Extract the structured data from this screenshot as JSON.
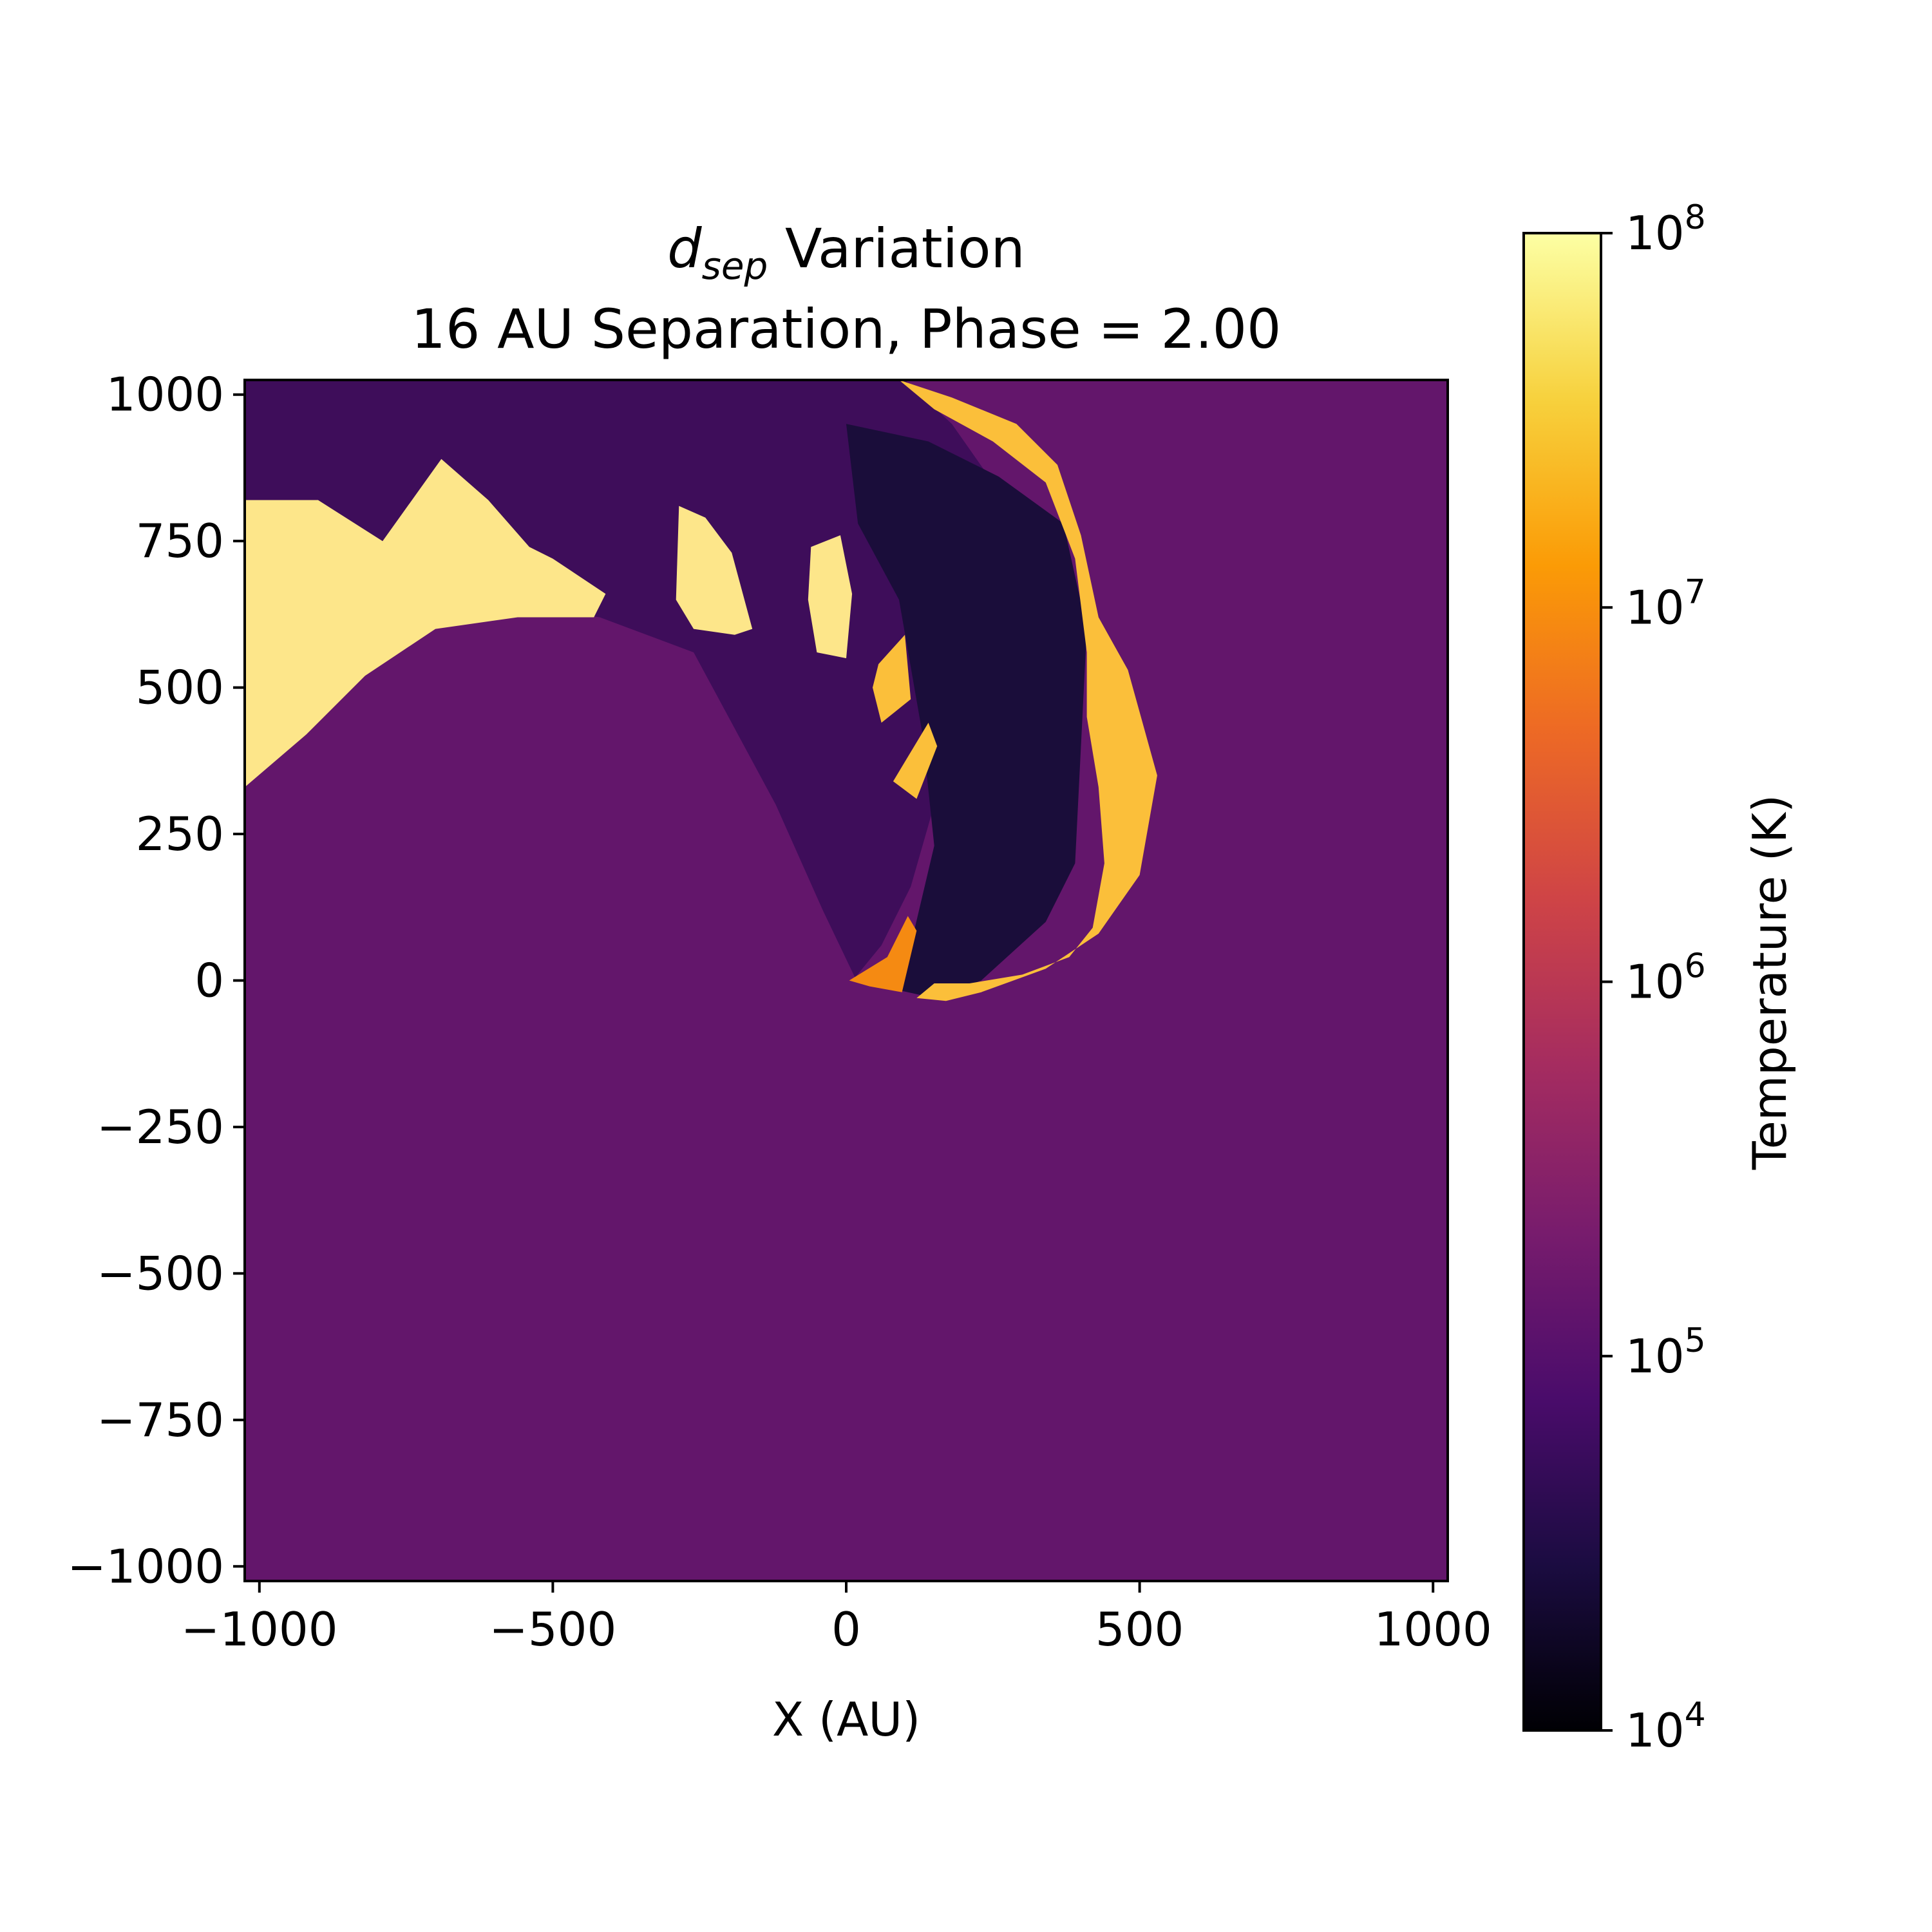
{
  "chart_data": {
    "type": "heatmap",
    "title": {
      "italic_symbol": "d",
      "italic_subscript": "sep",
      "line1_rest": " Variation",
      "line2": "16 AU Separation, Phase = 2.00"
    },
    "xlabel": "X (AU)",
    "ylabel": "",
    "xlim": [
      -1025,
      1025
    ],
    "ylim": [
      -1025,
      1025
    ],
    "xticks": [
      {
        "value": -1000,
        "label": "−1000"
      },
      {
        "value": -500,
        "label": "−500"
      },
      {
        "value": 0,
        "label": "0"
      },
      {
        "value": 500,
        "label": "500"
      },
      {
        "value": 1000,
        "label": "1000"
      }
    ],
    "yticks": [
      {
        "value": 1000,
        "label": "1000"
      },
      {
        "value": 750,
        "label": "750"
      },
      {
        "value": 500,
        "label": "500"
      },
      {
        "value": 250,
        "label": "250"
      },
      {
        "value": 0,
        "label": "0"
      },
      {
        "value": -250,
        "label": "−250"
      },
      {
        "value": -500,
        "label": "−500"
      },
      {
        "value": -750,
        "label": "−750"
      },
      {
        "value": -1000,
        "label": "−1000"
      }
    ],
    "colorbar": {
      "label": "Temperature (K)",
      "scale": "log",
      "colormap": "inferno",
      "range": [
        10000,
        100000000
      ],
      "ticks": [
        {
          "value": 100000000,
          "base": "10",
          "exp": "8"
        },
        {
          "value": 10000000,
          "base": "10",
          "exp": "7"
        },
        {
          "value": 1000000,
          "base": "10",
          "exp": "6"
        },
        {
          "value": 100000,
          "base": "10",
          "exp": "5"
        },
        {
          "value": 10000,
          "base": "10",
          "exp": "4"
        }
      ],
      "stops": [
        "#000004",
        "#1b0c41",
        "#4a0c6b",
        "#781c6d",
        "#a52c60",
        "#cf4446",
        "#ed6925",
        "#fb9b06",
        "#f7d13d",
        "#fcffa4"
      ]
    },
    "background_level": "#63166b",
    "regions": [
      {
        "name": "upper-ambient-wind",
        "temperature_K": 50000,
        "color": "#3e0d5a",
        "polygon": [
          [
            -1025,
            1025
          ],
          [
            100,
            1025
          ],
          [
            180,
            950
          ],
          [
            250,
            850
          ],
          [
            300,
            700
          ],
          [
            260,
            560
          ],
          [
            200,
            420
          ],
          [
            150,
            300
          ],
          [
            110,
            160
          ],
          [
            60,
            60
          ],
          [
            15,
            5
          ],
          [
            -40,
            120
          ],
          [
            -120,
            300
          ],
          [
            -260,
            560
          ],
          [
            -420,
            620
          ],
          [
            -560,
            640
          ],
          [
            -700,
            650
          ],
          [
            -860,
            690
          ],
          [
            -1025,
            720
          ]
        ]
      },
      {
        "name": "cavity-interior",
        "temperature_K": 25000,
        "color": "#1a0d3a",
        "polygon": [
          [
            0,
            950
          ],
          [
            140,
            920
          ],
          [
            260,
            860
          ],
          [
            370,
            780
          ],
          [
            410,
            600
          ],
          [
            400,
            400
          ],
          [
            390,
            200
          ],
          [
            340,
            100
          ],
          [
            230,
            0
          ],
          [
            150,
            -30
          ],
          [
            60,
            -10
          ],
          [
            110,
            60
          ],
          [
            150,
            230
          ],
          [
            130,
            420
          ],
          [
            90,
            650
          ],
          [
            20,
            780
          ]
        ]
      },
      {
        "name": "shock-shell-right",
        "temperature_K": 60000000,
        "color": "#fbbf3a",
        "polygon": [
          [
            90,
            1025
          ],
          [
            180,
            995
          ],
          [
            290,
            950
          ],
          [
            360,
            880
          ],
          [
            400,
            760
          ],
          [
            430,
            620
          ],
          [
            480,
            530
          ],
          [
            530,
            350
          ],
          [
            500,
            180
          ],
          [
            430,
            80
          ],
          [
            340,
            20
          ],
          [
            230,
            -20
          ],
          [
            170,
            -35
          ],
          [
            120,
            -30
          ],
          [
            150,
            -5
          ],
          [
            210,
            -5
          ],
          [
            300,
            10
          ],
          [
            380,
            40
          ],
          [
            420,
            90
          ],
          [
            440,
            200
          ],
          [
            430,
            330
          ],
          [
            410,
            450
          ],
          [
            410,
            560
          ],
          [
            390,
            720
          ],
          [
            340,
            850
          ],
          [
            250,
            920
          ],
          [
            150,
            975
          ]
        ]
      },
      {
        "name": "shock-shell-inner",
        "temperature_K": 12000000,
        "color": "#f58a12",
        "polygon": [
          [
            5,
            0
          ],
          [
            70,
            40
          ],
          [
            105,
            110
          ],
          [
            120,
            85
          ],
          [
            95,
            -20
          ],
          [
            40,
            -10
          ]
        ]
      },
      {
        "name": "hot-clump-far-left",
        "temperature_K": 90000000,
        "color": "#fde68a",
        "polygon": [
          [
            -1025,
            820
          ],
          [
            -900,
            820
          ],
          [
            -790,
            750
          ],
          [
            -690,
            890
          ],
          [
            -610,
            820
          ],
          [
            -540,
            740
          ],
          [
            -500,
            720
          ],
          [
            -410,
            660
          ],
          [
            -430,
            620
          ],
          [
            -560,
            620
          ],
          [
            -700,
            600
          ],
          [
            -820,
            520
          ],
          [
            -920,
            420
          ],
          [
            -1025,
            330
          ]
        ]
      },
      {
        "name": "hot-clump-mid-left",
        "temperature_K": 85000000,
        "color": "#fde68a",
        "polygon": [
          [
            -285,
            810
          ],
          [
            -240,
            790
          ],
          [
            -195,
            730
          ],
          [
            -160,
            600
          ],
          [
            -190,
            590
          ],
          [
            -260,
            600
          ],
          [
            -290,
            650
          ]
        ]
      },
      {
        "name": "hot-clump-center",
        "temperature_K": 85000000,
        "color": "#fde68a",
        "polygon": [
          [
            -60,
            740
          ],
          [
            -10,
            760
          ],
          [
            10,
            660
          ],
          [
            0,
            550
          ],
          [
            -50,
            560
          ],
          [
            -65,
            650
          ]
        ]
      },
      {
        "name": "hot-clump-knot-a",
        "temperature_K": 40000000,
        "color": "#fbbf3a",
        "polygon": [
          [
            55,
            540
          ],
          [
            100,
            590
          ],
          [
            110,
            480
          ],
          [
            60,
            440
          ],
          [
            45,
            500
          ]
        ]
      },
      {
        "name": "hot-clump-knot-b",
        "temperature_K": 40000000,
        "color": "#fbbf3a",
        "polygon": [
          [
            80,
            340
          ],
          [
            140,
            440
          ],
          [
            155,
            400
          ],
          [
            120,
            310
          ]
        ]
      }
    ]
  }
}
